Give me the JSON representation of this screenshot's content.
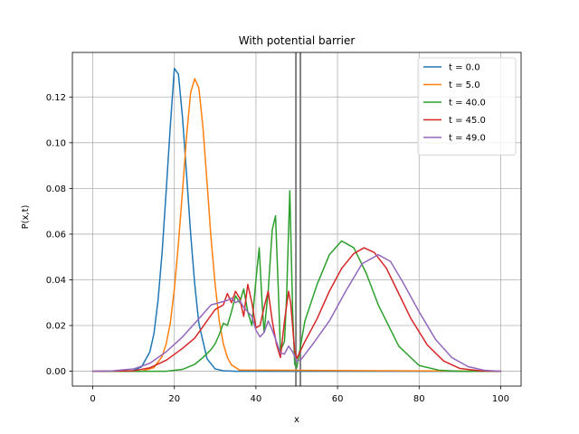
{
  "chart_data": {
    "type": "line",
    "title": "With potential barrier",
    "xlabel": "x",
    "ylabel": "P(x,t)",
    "xlim": [
      -5,
      105
    ],
    "ylim": [
      -0.0065,
      0.1395
    ],
    "xticks": [
      0,
      20,
      40,
      60,
      80,
      100
    ],
    "yticks": [
      0.0,
      0.02,
      0.04,
      0.06,
      0.08,
      0.1,
      0.12
    ],
    "ytick_labels": [
      "0.00",
      "0.02",
      "0.04",
      "0.06",
      "0.08",
      "0.10",
      "0.12"
    ],
    "grid": true,
    "legend": "top-right",
    "barrier": {
      "x": [
        49.8,
        50.9
      ],
      "color": "#808080"
    },
    "series": [
      {
        "name": "t = 0.0",
        "color": "#1f77b4",
        "x": [
          0,
          8,
          10,
          12,
          14,
          15,
          16,
          17,
          18,
          19,
          20,
          21,
          22,
          23,
          24,
          25,
          26,
          28,
          30,
          32,
          35,
          100
        ],
        "y": [
          0,
          0,
          0.0003,
          0.002,
          0.0085,
          0.0165,
          0.031,
          0.052,
          0.079,
          0.107,
          0.1325,
          0.13,
          0.111,
          0.086,
          0.06,
          0.038,
          0.021,
          0.0055,
          0.001,
          0.0002,
          0,
          0
        ]
      },
      {
        "name": "t = 5.0",
        "color": "#ff7f0e",
        "x": [
          0,
          12,
          15,
          17,
          18,
          19,
          20,
          21,
          22,
          23,
          24,
          25,
          26,
          27,
          28,
          29,
          30,
          31,
          32,
          33,
          34,
          36,
          100
        ],
        "y": [
          0,
          0,
          0.0016,
          0.0065,
          0.012,
          0.021,
          0.036,
          0.056,
          0.079,
          0.103,
          0.122,
          0.128,
          0.124,
          0.107,
          0.083,
          0.058,
          0.038,
          0.022,
          0.012,
          0.006,
          0.0028,
          0.0005,
          0
        ]
      },
      {
        "name": "t = 40.0",
        "color": "#2ca02c",
        "x": [
          0,
          18,
          22,
          25,
          27,
          29,
          30,
          31,
          32,
          33,
          34,
          35,
          36,
          37,
          38,
          39,
          40,
          40.8,
          41.5,
          42,
          43,
          44,
          44.8,
          45.5,
          46,
          47,
          47.5,
          48.3,
          49,
          49.5,
          50,
          52,
          55,
          58,
          61,
          64,
          67,
          70,
          75,
          80,
          85,
          90,
          95,
          100
        ],
        "y": [
          0,
          0,
          0.0008,
          0.003,
          0.006,
          0.0095,
          0.012,
          0.016,
          0.021,
          0.02,
          0.026,
          0.033,
          0.03,
          0.036,
          0.026,
          0.02,
          0.04,
          0.054,
          0.03,
          0.017,
          0.035,
          0.062,
          0.068,
          0.035,
          0.009,
          0.013,
          0.032,
          0.079,
          0.026,
          0.003,
          0.0015,
          0.022,
          0.038,
          0.051,
          0.057,
          0.054,
          0.043,
          0.029,
          0.011,
          0.0025,
          0.0004,
          0,
          0,
          0
        ]
      },
      {
        "name": "t = 45.0",
        "color": "#d62728",
        "x": [
          0,
          10,
          14,
          18,
          22,
          25,
          28,
          30,
          31,
          32,
          33,
          34,
          35,
          36,
          37,
          38,
          39,
          40,
          41,
          42,
          43,
          44,
          45,
          46,
          47,
          48,
          48.5,
          49.5,
          50,
          52,
          55,
          58,
          61,
          64,
          66.5,
          69,
          72,
          75,
          78,
          82,
          86,
          90,
          95,
          100
        ],
        "y": [
          0,
          0.0002,
          0.0015,
          0.0048,
          0.01,
          0.0145,
          0.022,
          0.027,
          0.028,
          0.029,
          0.034,
          0.03,
          0.035,
          0.032,
          0.024,
          0.038,
          0.03,
          0.019,
          0.02,
          0.028,
          0.035,
          0.022,
          0.012,
          0.006,
          0.022,
          0.035,
          0.03,
          0.009,
          0.0055,
          0.013,
          0.023,
          0.035,
          0.045,
          0.0515,
          0.054,
          0.052,
          0.045,
          0.034,
          0.023,
          0.0115,
          0.0045,
          0.0012,
          0.0002,
          0
        ]
      },
      {
        "name": "t = 49.0",
        "color": "#9467bd",
        "x": [
          0,
          5,
          10,
          14,
          18,
          22,
          26,
          29,
          31,
          33,
          34,
          35,
          36,
          37,
          38,
          39,
          40,
          41,
          42,
          43,
          44,
          45,
          46,
          47,
          48,
          49,
          50,
          51,
          54,
          58,
          62,
          66,
          70,
          73,
          76,
          80,
          84,
          88,
          92,
          96,
          100
        ],
        "y": [
          0,
          0.0002,
          0.001,
          0.0035,
          0.0085,
          0.015,
          0.023,
          0.029,
          0.03,
          0.031,
          0.032,
          0.03,
          0.031,
          0.028,
          0.026,
          0.024,
          0.018,
          0.015,
          0.017,
          0.022,
          0.018,
          0.013,
          0.008,
          0.0075,
          0.011,
          0.0085,
          0.0045,
          0.005,
          0.012,
          0.022,
          0.035,
          0.047,
          0.051,
          0.048,
          0.039,
          0.026,
          0.014,
          0.006,
          0.002,
          0.0004,
          0
        ]
      }
    ]
  }
}
